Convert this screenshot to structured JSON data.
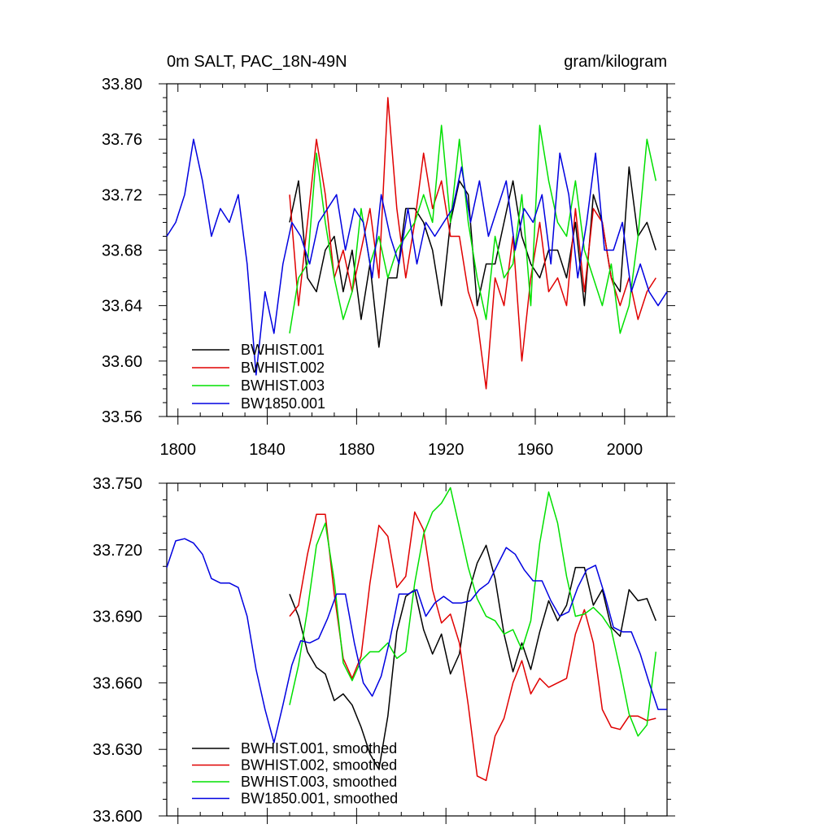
{
  "colors": {
    "black": "#000000",
    "red": "#e00000",
    "green": "#00e000",
    "blue": "#0000e0"
  },
  "top_panel": {
    "title_left": "0m SALT, PAC_18N-49N",
    "title_right": "gram/kilogram"
  },
  "chart_data": [
    {
      "type": "line",
      "title": "0m SALT, PAC_18N-49N",
      "units": "gram/kilogram",
      "xlabel": "",
      "ylabel": "",
      "xlim": [
        1795,
        2019
      ],
      "ylim": [
        33.56,
        33.8
      ],
      "x_ticks": [
        1800,
        1840,
        1880,
        1920,
        1960,
        2000
      ],
      "y_ticks": [
        33.56,
        33.6,
        33.64,
        33.68,
        33.72,
        33.76,
        33.8
      ],
      "x_tick_labels": [
        "1800",
        "1840",
        "1880",
        "1920",
        "1960",
        "2000"
      ],
      "y_tick_labels": [
        "33.56",
        "33.60",
        "33.64",
        "33.68",
        "33.72",
        "33.76",
        "33.80"
      ],
      "grid": false,
      "legend_position": "bottom-left",
      "series": [
        {
          "name": "BWHIST.001",
          "color": "#000000",
          "x_start": 1850,
          "x_step": 4,
          "values": [
            33.7,
            33.73,
            33.66,
            33.65,
            33.68,
            33.69,
            33.65,
            33.68,
            33.63,
            33.67,
            33.61,
            33.66,
            33.66,
            33.71,
            33.71,
            33.7,
            33.68,
            33.64,
            33.7,
            33.73,
            33.72,
            33.64,
            33.67,
            33.67,
            33.7,
            33.73,
            33.69,
            33.67,
            33.66,
            33.68,
            33.68,
            33.66,
            33.7,
            33.64,
            33.72,
            33.7,
            33.66,
            33.65,
            33.74,
            33.69,
            33.7,
            33.68
          ]
        },
        {
          "name": "BWHIST.002",
          "color": "#e00000",
          "x_start": 1850,
          "x_step": 4,
          "values": [
            33.72,
            33.64,
            33.7,
            33.76,
            33.72,
            33.66,
            33.68,
            33.65,
            33.68,
            33.71,
            33.66,
            33.79,
            33.71,
            33.66,
            33.7,
            33.75,
            33.71,
            33.73,
            33.69,
            33.69,
            33.65,
            33.63,
            33.58,
            33.66,
            33.64,
            33.69,
            33.6,
            33.66,
            33.7,
            33.65,
            33.66,
            33.64,
            33.71,
            33.65,
            33.71,
            33.7,
            33.66,
            33.64,
            33.66,
            33.63,
            33.65,
            33.66
          ]
        },
        {
          "name": "BWHIST.003",
          "color": "#00e000",
          "x_start": 1850,
          "x_step": 4,
          "values": [
            33.62,
            33.66,
            33.67,
            33.75,
            33.7,
            33.66,
            33.63,
            33.65,
            33.71,
            33.67,
            33.69,
            33.66,
            33.68,
            33.69,
            33.7,
            33.72,
            33.7,
            33.77,
            33.7,
            33.76,
            33.7,
            33.66,
            33.63,
            33.69,
            33.66,
            33.67,
            33.72,
            33.64,
            33.77,
            33.73,
            33.7,
            33.69,
            33.73,
            33.68,
            33.66,
            33.64,
            33.67,
            33.62,
            33.64,
            33.69,
            33.76,
            33.73
          ]
        },
        {
          "name": "BW1850.001",
          "color": "#0000e0",
          "x_start": 1795,
          "x_step": 4,
          "values": [
            33.69,
            33.7,
            33.72,
            33.76,
            33.73,
            33.69,
            33.71,
            33.7,
            33.72,
            33.67,
            33.59,
            33.65,
            33.62,
            33.67,
            33.7,
            33.69,
            33.67,
            33.7,
            33.71,
            33.72,
            33.68,
            33.71,
            33.7,
            33.66,
            33.72,
            33.69,
            33.67,
            33.71,
            33.67,
            33.7,
            33.69,
            33.7,
            33.71,
            33.74,
            33.7,
            33.73,
            33.69,
            33.71,
            33.73,
            33.68,
            33.71,
            33.7,
            33.72,
            33.67,
            33.75,
            33.72,
            33.66,
            33.7,
            33.75,
            33.68,
            33.68,
            33.7,
            33.65,
            33.67,
            33.65,
            33.64,
            33.65
          ]
        }
      ]
    },
    {
      "type": "line",
      "title": "",
      "xlabel": "",
      "ylabel": "",
      "xlim": [
        1795,
        2019
      ],
      "ylim": [
        33.6,
        33.75
      ],
      "x_ticks": [
        1800,
        1840,
        1880,
        1920,
        1960,
        2000
      ],
      "y_ticks": [
        33.6,
        33.63,
        33.66,
        33.69,
        33.72,
        33.75
      ],
      "y_tick_labels": [
        "33.600",
        "33.630",
        "33.660",
        "33.690",
        "33.720",
        "33.750"
      ],
      "grid": false,
      "legend_position": "bottom-left",
      "series": [
        {
          "name": "BWHIST.001, smoothed",
          "color": "#000000",
          "x_start": 1850,
          "x_step": 4,
          "values": [
            33.7,
            33.69,
            33.674,
            33.667,
            33.664,
            33.652,
            33.655,
            33.65,
            33.64,
            33.628,
            33.621,
            33.645,
            33.683,
            33.699,
            33.702,
            33.684,
            33.673,
            33.682,
            33.664,
            33.673,
            33.7,
            33.714,
            33.722,
            33.707,
            33.682,
            33.665,
            33.678,
            33.666,
            33.683,
            33.697,
            33.688,
            33.695,
            33.712,
            33.712,
            33.695,
            33.702,
            33.685,
            33.681,
            33.702,
            33.697,
            33.698,
            33.688
          ]
        },
        {
          "name": "BWHIST.002, smoothed",
          "color": "#e00000",
          "x_start": 1850,
          "x_step": 4,
          "values": [
            33.69,
            33.695,
            33.718,
            33.736,
            33.736,
            33.7,
            33.671,
            33.662,
            33.672,
            33.705,
            33.731,
            33.726,
            33.703,
            33.708,
            33.737,
            33.729,
            33.702,
            33.687,
            33.691,
            33.678,
            33.65,
            33.618,
            33.616,
            33.636,
            33.644,
            33.66,
            33.67,
            33.655,
            33.662,
            33.658,
            33.66,
            33.662,
            33.682,
            33.693,
            33.678,
            33.648,
            33.64,
            33.639,
            33.645,
            33.645,
            33.643,
            33.644
          ]
        },
        {
          "name": "BWHIST.003, smoothed",
          "color": "#00e000",
          "x_start": 1850,
          "x_step": 4,
          "values": [
            33.65,
            33.668,
            33.693,
            33.722,
            33.732,
            33.706,
            33.669,
            33.661,
            33.67,
            33.674,
            33.674,
            33.678,
            33.671,
            33.674,
            33.705,
            33.727,
            33.737,
            33.741,
            33.748,
            33.73,
            33.712,
            33.698,
            33.69,
            33.688,
            33.682,
            33.684,
            33.675,
            33.688,
            33.723,
            33.746,
            33.732,
            33.708,
            33.69,
            33.691,
            33.694,
            33.69,
            33.684,
            33.666,
            33.646,
            33.636,
            33.641,
            33.674
          ]
        },
        {
          "name": "BW1850.001, smoothed",
          "color": "#0000e0",
          "x_start": 1795,
          "x_step": 4,
          "values": [
            33.712,
            33.724,
            33.725,
            33.723,
            33.718,
            33.707,
            33.705,
            33.705,
            33.703,
            33.69,
            33.666,
            33.648,
            33.633,
            33.65,
            33.668,
            33.679,
            33.678,
            33.68,
            33.689,
            33.7,
            33.7,
            33.678,
            33.66,
            33.654,
            33.663,
            33.68,
            33.7,
            33.7,
            33.702,
            33.69,
            33.696,
            33.699,
            33.696,
            33.696,
            33.697,
            33.702,
            33.705,
            33.713,
            33.721,
            33.718,
            33.711,
            33.706,
            33.706,
            33.697,
            33.69,
            33.692,
            33.703,
            33.711,
            33.713,
            33.7,
            33.685,
            33.683,
            33.683,
            33.673,
            33.66,
            33.648,
            33.648
          ]
        }
      ]
    }
  ]
}
